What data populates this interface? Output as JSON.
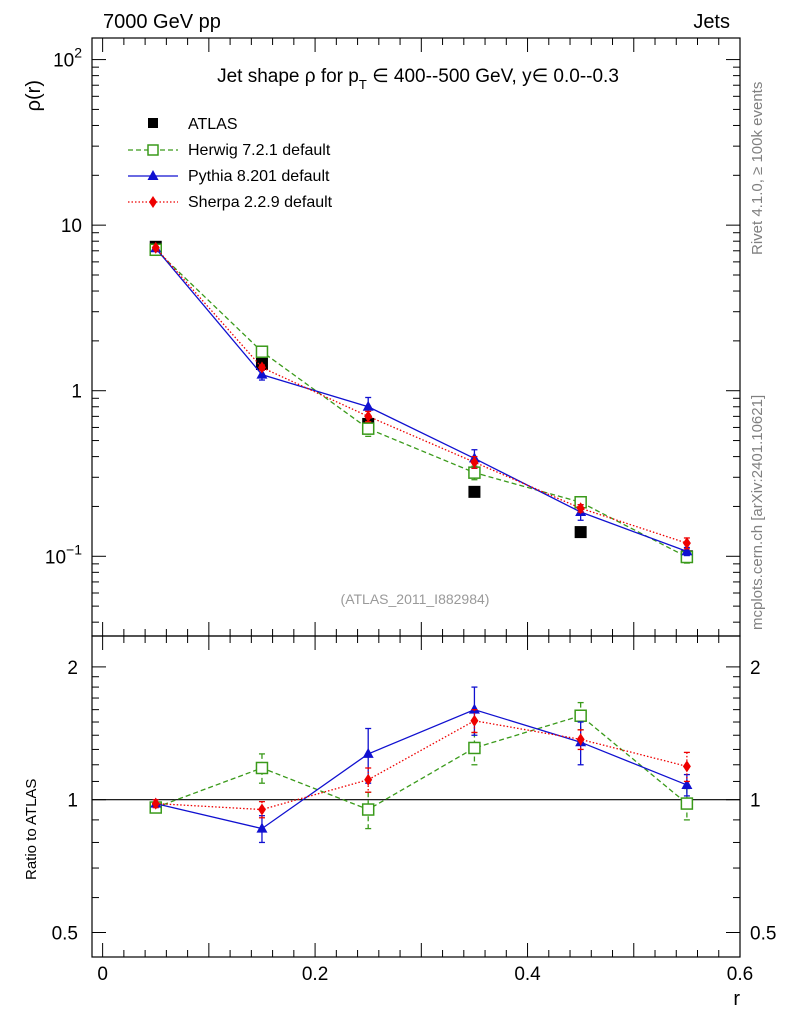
{
  "header": {
    "left": "7000 GeV pp",
    "right": "Jets"
  },
  "side_labels": {
    "rivet": "Rivet 4.1.0, ≥ 100k events",
    "mcplots": "mcplots.cern.ch [arXiv:2401.10621]"
  },
  "reference": "(ATLAS_2011_I882984)",
  "colors": {
    "atlas": "#000000",
    "herwig": "#3a9a1a",
    "pythia": "#1010d0",
    "sherpa": "#ee0000"
  },
  "chart_data": [
    {
      "type": "line",
      "panel": "main",
      "title": "Jet shape ρ for p_T ∈ 400--500 GeV, y∈ 0.0--0.3",
      "title_parts": {
        "prefix": "Jet shape ρ for p",
        "sub": "T",
        "suffix": " ∈ 400--500 GeV, y∈ 0.0--0.3"
      },
      "xlabel": "r",
      "ylabel": "ρ(r)",
      "yscale": "log",
      "xlim": [
        -0.01,
        0.6
      ],
      "ylim": [
        0.033,
        135
      ],
      "x_ticks": [
        {
          "value": 0,
          "label": "0"
        },
        {
          "value": 0.2,
          "label": "0.2"
        },
        {
          "value": 0.4,
          "label": "0.4"
        },
        {
          "value": 0.6,
          "label": "0.6"
        }
      ],
      "y_ticks": [
        {
          "value": 0.1,
          "base": "10",
          "exp": "−1"
        },
        {
          "value": 1,
          "base": "1",
          "exp": ""
        },
        {
          "value": 10,
          "base": "10",
          "exp": ""
        },
        {
          "value": 100,
          "base": "10",
          "exp": "2"
        }
      ],
      "legend_position": "top-left",
      "x": [
        0.05,
        0.15,
        0.25,
        0.35,
        0.45,
        0.55
      ],
      "series": [
        {
          "name": "ATLAS",
          "key": "atlas",
          "values": [
            7.4,
            1.45,
            0.63,
            0.245,
            0.14,
            0.1
          ],
          "err": [
            0,
            0,
            0,
            0,
            0,
            0
          ]
        },
        {
          "name": "Herwig 7.2.1 default",
          "key": "herwig",
          "values": [
            7.1,
            1.72,
            0.59,
            0.32,
            0.212,
            0.099
          ],
          "err": [
            0.15,
            0.12,
            0.06,
            0.03,
            0.015,
            0.008
          ]
        },
        {
          "name": "Pythia 8.201 default",
          "key": "pythia",
          "values": [
            7.25,
            1.25,
            0.8,
            0.39,
            0.185,
            0.107
          ],
          "err": [
            0.15,
            0.09,
            0.11,
            0.05,
            0.02,
            0.006
          ]
        },
        {
          "name": "Sherpa 2.2.9 default",
          "key": "sherpa",
          "values": [
            7.3,
            1.38,
            0.7,
            0.37,
            0.195,
            0.12
          ],
          "err": [
            0.15,
            0.05,
            0.05,
            0.03,
            0.01,
            0.009
          ]
        }
      ]
    },
    {
      "type": "line",
      "panel": "ratio",
      "title": "",
      "xlabel": "r",
      "ylabel": "Ratio to ATLAS",
      "yscale": "log",
      "xlim": [
        -0.01,
        0.6
      ],
      "ylim": [
        0.44,
        2.35
      ],
      "y_ticks": [
        {
          "value": 0.5,
          "label": "0.5"
        },
        {
          "value": 1,
          "label": "1"
        },
        {
          "value": 2,
          "label": "2"
        }
      ],
      "reference_line": 1,
      "x": [
        0.05,
        0.15,
        0.25,
        0.35,
        0.45,
        0.55
      ],
      "series": [
        {
          "name": "Herwig 7.2.1 default",
          "key": "herwig",
          "values": [
            0.96,
            1.18,
            0.95,
            1.31,
            1.55,
            0.98
          ],
          "err": [
            0.02,
            0.09,
            0.09,
            0.11,
            0.11,
            0.08
          ]
        },
        {
          "name": "Pythia 8.201 default",
          "key": "pythia",
          "values": [
            0.98,
            0.86,
            1.27,
            1.6,
            1.35,
            1.08
          ],
          "err": [
            0.02,
            0.06,
            0.18,
            0.2,
            0.15,
            0.06
          ]
        },
        {
          "name": "Sherpa 2.2.9 default",
          "key": "sherpa",
          "values": [
            0.98,
            0.95,
            1.11,
            1.51,
            1.37,
            1.19
          ],
          "err": [
            0.02,
            0.04,
            0.07,
            0.09,
            0.07,
            0.09
          ]
        }
      ]
    }
  ]
}
